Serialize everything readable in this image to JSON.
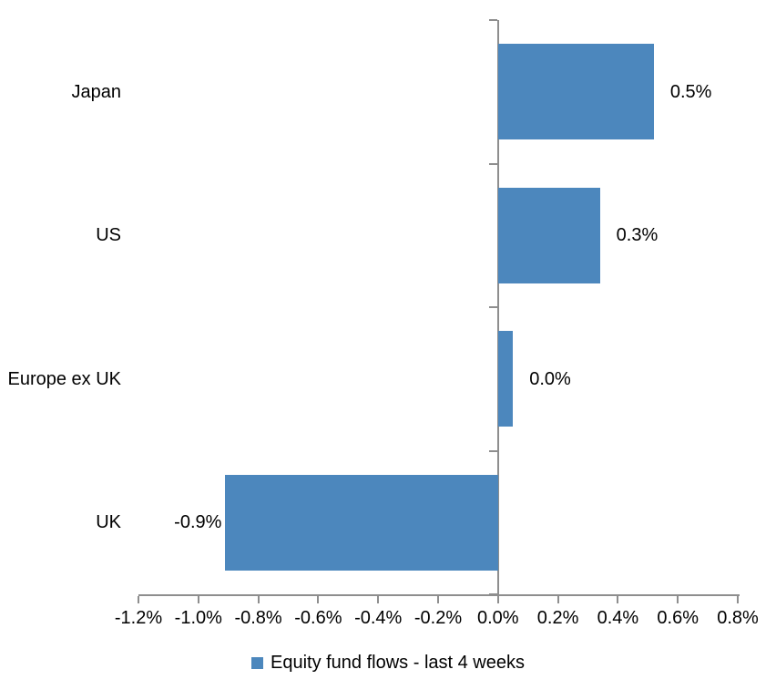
{
  "chart_data": {
    "type": "bar",
    "orientation": "horizontal",
    "title": "",
    "categories": [
      "Japan",
      "US",
      "Europe ex UK",
      "UK"
    ],
    "series": [
      {
        "name": "Equity fund flows - last 4 weeks",
        "values": [
          0.52,
          0.34,
          0.05,
          -0.91
        ],
        "data_labels": [
          "0.5%",
          "0.3%",
          "0.0%",
          "-0.9%"
        ]
      }
    ],
    "series_name": "Equity fund flows - last 4 weeks",
    "xlabel": "",
    "ylabel": "",
    "xlim": [
      -1.2,
      0.8
    ],
    "x_tick_step": 0.2,
    "x_tick_labels": [
      "-1.2%",
      "-1.0%",
      "-0.8%",
      "-0.6%",
      "-0.4%",
      "-0.2%",
      "0.0%",
      "0.2%",
      "0.4%",
      "0.6%",
      "0.8%"
    ],
    "grid": false,
    "legend_position": "bottom",
    "bar_color": "#4C87BD",
    "axis_color": "#8E8E8E",
    "text_color": "#000000"
  }
}
